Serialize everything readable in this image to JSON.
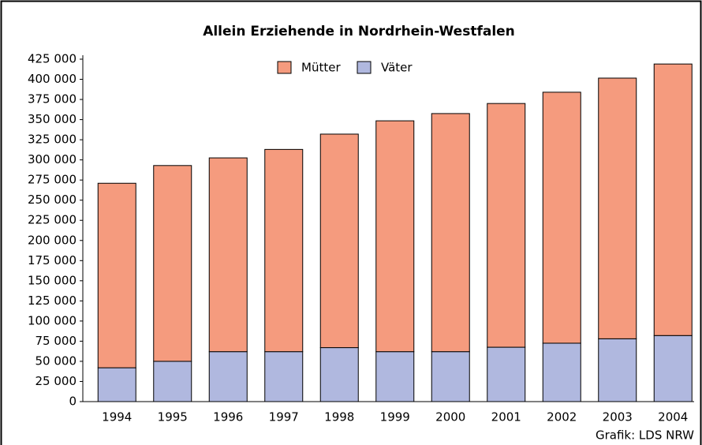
{
  "chart_data": {
    "type": "stacked-bar",
    "title": "Allein Erziehende in Nordrhein-Westfalen",
    "source": "Grafik: LDS NRW",
    "categories": [
      "1994",
      "1995",
      "1996",
      "1997",
      "1998",
      "1999",
      "2000",
      "2001",
      "2002",
      "2003",
      "2004"
    ],
    "series": [
      {
        "name": "Väter",
        "color": "#b0b8df",
        "values": [
          42000,
          50000,
          62000,
          62000,
          67000,
          62000,
          62000,
          67500,
          72500,
          78000,
          82000
        ]
      },
      {
        "name": "Mütter",
        "color": "#f59b7e",
        "values": [
          229000,
          243000,
          240500,
          251000,
          265000,
          286500,
          295500,
          302500,
          311500,
          323500,
          337000
        ]
      }
    ],
    "legend_order": [
      "Mütter",
      "Väter"
    ],
    "ylim": [
      0,
      425000
    ],
    "yticks": [
      0,
      {
        "value": 25000,
        "label": "25 000"
      },
      {
        "value": 50000,
        "label": "50 000"
      },
      {
        "value": 75000,
        "label": "75 000"
      },
      {
        "value": 100000,
        "label": "100 000"
      },
      {
        "value": 125000,
        "label": "125 000"
      },
      {
        "value": 150000,
        "label": "150 000"
      },
      {
        "value": 175000,
        "label": "175 000"
      },
      {
        "value": 200000,
        "label": "200 000"
      },
      {
        "value": 225000,
        "label": "225 000"
      },
      {
        "value": 250000,
        "label": "250 000"
      },
      {
        "value": 275000,
        "label": "275 000"
      },
      {
        "value": 300000,
        "label": "300 000"
      },
      {
        "value": 325000,
        "label": "325 000"
      },
      {
        "value": 350000,
        "label": "350 000"
      },
      {
        "value": 375000,
        "label": "375 000"
      },
      {
        "value": 400000,
        "label": "400 000"
      },
      {
        "value": 425000,
        "label": "425 000"
      }
    ],
    "grid": false
  }
}
